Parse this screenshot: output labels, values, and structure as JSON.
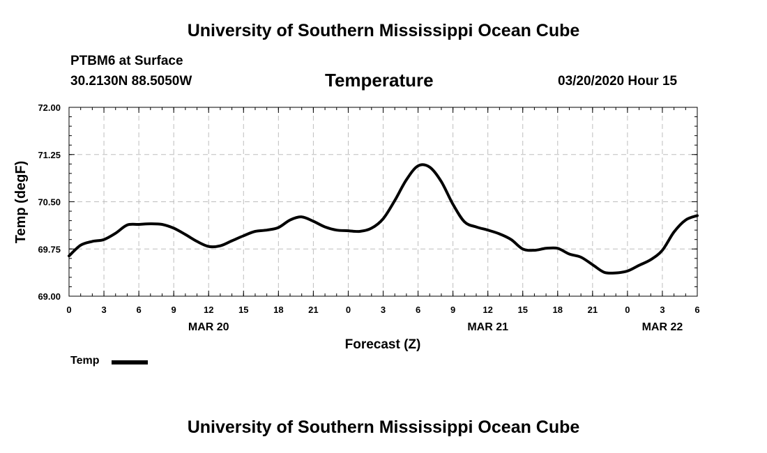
{
  "header": {
    "title": "University of Southern Mississippi Ocean Cube",
    "station": "PTBM6 at Surface",
    "coords": "30.2130N 88.5050W",
    "date_hour": "03/20/2020 Hour 15"
  },
  "footer": {
    "title": "University of Southern Mississippi Ocean Cube"
  },
  "chart_data": {
    "type": "line",
    "title": "Temperature",
    "xlabel": "Forecast (Z)",
    "ylabel": "Temp (degF)",
    "ylim": [
      69.0,
      72.0
    ],
    "yticks": [
      "69.00",
      "69.75",
      "70.50",
      "71.25",
      "72.00"
    ],
    "xticks": [
      "0",
      "3",
      "6",
      "9",
      "12",
      "15",
      "18",
      "21",
      "0",
      "3",
      "6",
      "9",
      "12",
      "15",
      "18",
      "21",
      "0",
      "3",
      "6"
    ],
    "date_labels": [
      {
        "label": "MAR 20",
        "hour": 12
      },
      {
        "label": "MAR 21",
        "hour": 36
      },
      {
        "label": "MAR 22",
        "hour": 51
      }
    ],
    "xlim_hours": [
      0,
      54
    ],
    "grid": true,
    "legend_position": "bottom-left",
    "series": [
      {
        "name": "Temp",
        "color": "#000000",
        "x_hours": [
          0,
          1,
          2,
          3,
          4,
          5,
          6,
          7,
          8,
          9,
          10,
          11,
          12,
          13,
          14,
          15,
          16,
          17,
          18,
          19,
          20,
          21,
          22,
          23,
          24,
          25,
          26,
          27,
          28,
          29,
          30,
          31,
          32,
          33,
          34,
          35,
          36,
          37,
          38,
          39,
          40,
          41,
          42,
          43,
          44,
          45,
          46,
          47,
          48,
          49,
          50,
          51,
          52,
          53,
          54
        ],
        "values": [
          69.64,
          69.81,
          69.87,
          69.9,
          70.0,
          70.13,
          70.14,
          70.15,
          70.14,
          70.08,
          69.98,
          69.87,
          69.79,
          69.8,
          69.88,
          69.96,
          70.03,
          70.05,
          70.09,
          70.21,
          70.26,
          70.19,
          70.1,
          70.05,
          70.04,
          70.03,
          70.08,
          70.23,
          70.52,
          70.85,
          71.07,
          71.05,
          70.82,
          70.46,
          70.18,
          70.1,
          70.05,
          69.99,
          69.9,
          69.75,
          69.73,
          69.76,
          69.76,
          69.67,
          69.62,
          69.5,
          69.38,
          69.37,
          69.4,
          69.49,
          69.58,
          69.73,
          70.02,
          70.21,
          70.28
        ]
      }
    ]
  }
}
